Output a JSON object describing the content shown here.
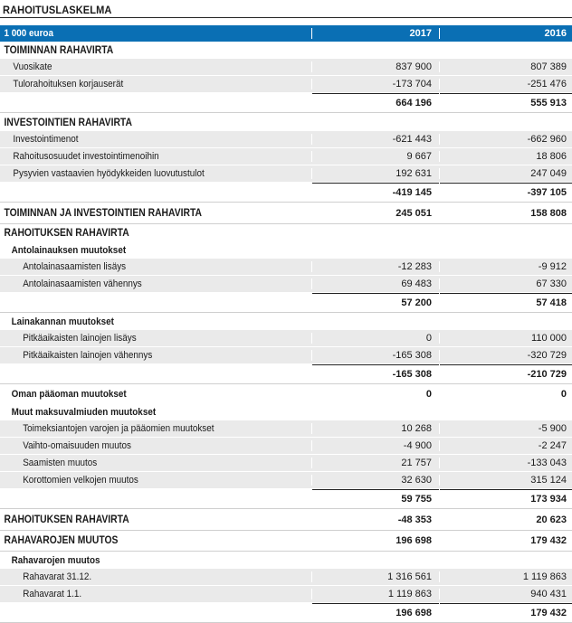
{
  "title": "RAHOITUSLASKELMA",
  "header": {
    "unit": "1 000 euroa",
    "col1": "2017",
    "col2": "2016"
  },
  "rows": [
    {
      "type": "sec",
      "label": "TOIMINNAN RAHAVIRTA",
      "v1": "",
      "v2": ""
    },
    {
      "type": "item",
      "label": "Vuosikate",
      "v1": "837 900",
      "v2": "807 389"
    },
    {
      "type": "item",
      "label": "Tulorahoituksen korjauserät",
      "v1": "-173 704",
      "v2": "-251 476"
    },
    {
      "type": "total",
      "label": "",
      "v1": "664 196",
      "v2": "555 913"
    },
    {
      "type": "sec",
      "label": "INVESTOINTIEN RAHAVIRTA",
      "v1": "",
      "v2": ""
    },
    {
      "type": "item",
      "label": "Investointimenot",
      "v1": "-621 443",
      "v2": "-662 960"
    },
    {
      "type": "item",
      "label": "Rahoitusosuudet investointimenoihin",
      "v1": "9 667",
      "v2": "18 806"
    },
    {
      "type": "item",
      "label": "Pysyvien vastaavien hyödykkeiden luovutustulot",
      "v1": "192 631",
      "v2": "247 049"
    },
    {
      "type": "total",
      "label": "",
      "v1": "-419 145",
      "v2": "-397 105"
    },
    {
      "type": "big",
      "label": "TOIMINNAN JA INVESTOINTIEN RAHAVIRTA",
      "v1": "245 051",
      "v2": "158 808"
    },
    {
      "type": "sec",
      "label": "RAHOITUKSEN RAHAVIRTA",
      "v1": "",
      "v2": ""
    },
    {
      "type": "sub",
      "label": "Antolainauksen muutokset",
      "v1": "",
      "v2": ""
    },
    {
      "type": "deep",
      "label": "Antolainasaamisten lisäys",
      "v1": "-12 283",
      "v2": "-9 912"
    },
    {
      "type": "deep",
      "label": "Antolainasaamisten vähennys",
      "v1": "69 483",
      "v2": "67 330"
    },
    {
      "type": "total",
      "label": "",
      "v1": "57 200",
      "v2": "57 418"
    },
    {
      "type": "sub",
      "label": "Lainakannan muutokset",
      "v1": "",
      "v2": ""
    },
    {
      "type": "deep",
      "label": "Pitkäaikaisten lainojen lisäys",
      "v1": "0",
      "v2": "110 000"
    },
    {
      "type": "deep",
      "label": "Pitkäaikaisten lainojen vähennys",
      "v1": "-165 308",
      "v2": "-320 729"
    },
    {
      "type": "total",
      "label": "",
      "v1": "-165 308",
      "v2": "-210 729"
    },
    {
      "type": "subv",
      "label": "Oman pääoman muutokset",
      "v1": "0",
      "v2": "0"
    },
    {
      "type": "sub",
      "label": "Muut maksuvalmiuden muutokset",
      "v1": "",
      "v2": ""
    },
    {
      "type": "deep",
      "label": "Toimeksiantojen varojen ja pääomien muutokset",
      "v1": "10 268",
      "v2": "-5 900"
    },
    {
      "type": "deep",
      "label": "Vaihto-omaisuuden muutos",
      "v1": "-4 900",
      "v2": "-2 247"
    },
    {
      "type": "deep",
      "label": "Saamisten muutos",
      "v1": "21 757",
      "v2": "-133 043"
    },
    {
      "type": "deep",
      "label": "Korottomien velkojen muutos",
      "v1": "32 630",
      "v2": "315 124"
    },
    {
      "type": "total",
      "label": "",
      "v1": "59 755",
      "v2": "173 934"
    },
    {
      "type": "big",
      "label": "RAHOITUKSEN RAHAVIRTA",
      "v1": "-48 353",
      "v2": "20 623"
    },
    {
      "type": "big",
      "label": "RAHAVAROJEN MUUTOS",
      "v1": "196 698",
      "v2": "179 432"
    },
    {
      "type": "sub",
      "label": "Rahavarojen muutos",
      "v1": "",
      "v2": ""
    },
    {
      "type": "deep",
      "label": "Rahavarat 31.12.",
      "v1": "1 316 561",
      "v2": "1 119 863"
    },
    {
      "type": "deep",
      "label": "Rahavarat 1.1.",
      "v1": "1 119 863",
      "v2": "940 431"
    },
    {
      "type": "total",
      "label": "",
      "v1": "196 698",
      "v2": "179 432"
    }
  ]
}
